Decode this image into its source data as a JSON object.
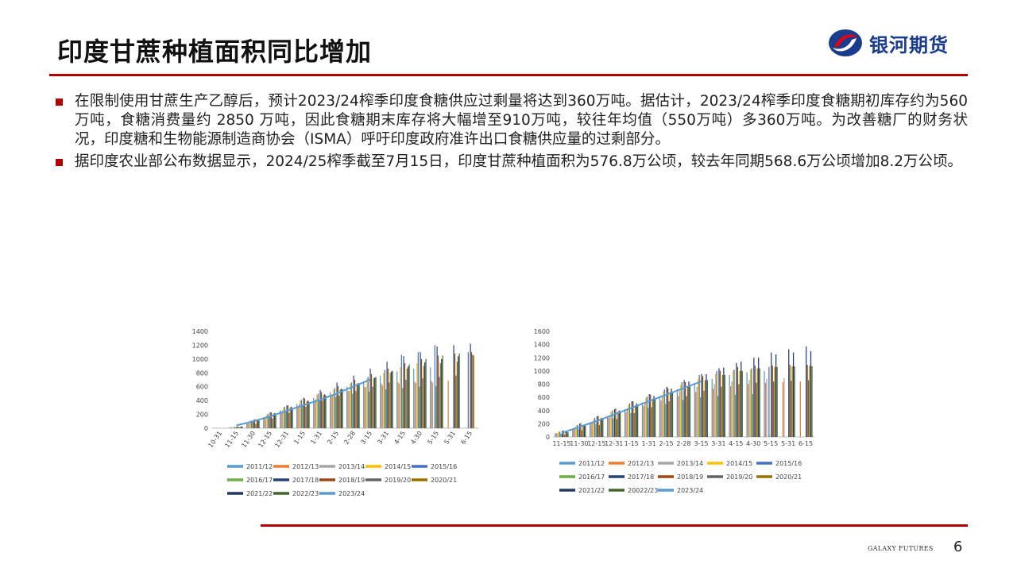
{
  "header": {
    "title": "印度甘蔗种植面积同比增加",
    "logo_text": "银河期货"
  },
  "bullets": [
    "在限制使用甘蔗生产乙醇后，预计2023/24榨季印度食糖供应过剩量将达到360万吨。据估计，2023/24榨季印度食糖期初库存约为560万吨，食糖消费量约 2850 万吨，因此食糖期末库存将大幅增至910万吨，较往年均值（550万吨）多360万吨。为改善糖厂的财务状况，印度糖和生物能源制造商协会（ISMA）呼吁印度政府准许出口食糖供应量的过剩部分。",
    "据印度农业部公布数据显示，2024/25榨季截至7月15日，印度甘蔗种植面积为576.8万公顷，较去年同期568.6万公顷增加8.2万公顷。"
  ],
  "footer": {
    "brand": "GALAXY FUTURES",
    "page": "6"
  },
  "chart_data": [
    {
      "type": "bar",
      "title": "",
      "xlabel": "",
      "ylabel": "",
      "ylim": [
        0,
        1400
      ],
      "yticks": [
        0,
        200,
        400,
        600,
        800,
        1000,
        1200,
        1400
      ],
      "categories": [
        "10-31",
        "11-15",
        "11-30",
        "12-15",
        "12-31",
        "1-15",
        "1-31",
        "2-15",
        "2-28",
        "3-15",
        "3-31",
        "4-15",
        "4-30",
        "5-15",
        "5-31",
        "6-15"
      ],
      "grid": false,
      "legend": "bottom",
      "line_series": "2023/24",
      "series": [
        {
          "name": "2011/12",
          "color": "#5b9bd5",
          "values": [
            0,
            15,
            80,
            160,
            260,
            350,
            440,
            520,
            600,
            680,
            760,
            820,
            860,
            880,
            0,
            0
          ]
        },
        {
          "name": "2012/13",
          "color": "#ed7d31",
          "values": [
            0,
            10,
            70,
            150,
            240,
            320,
            400,
            470,
            540,
            600,
            640,
            660,
            670,
            680,
            690,
            0
          ]
        },
        {
          "name": "2013/14",
          "color": "#a5a5a5",
          "values": [
            0,
            10,
            80,
            170,
            260,
            350,
            420,
            480,
            540,
            590,
            620,
            640,
            650,
            660,
            0,
            0
          ]
        },
        {
          "name": "2014/15",
          "color": "#ffc000",
          "values": [
            0,
            15,
            100,
            200,
            300,
            400,
            480,
            560,
            640,
            720,
            800,
            880,
            940,
            0,
            0,
            0
          ]
        },
        {
          "name": "2015/16",
          "color": "#4472c4",
          "values": [
            0,
            20,
            110,
            210,
            310,
            410,
            500,
            580,
            660,
            740,
            840,
            1060,
            1100,
            1200,
            0,
            1100
          ]
        },
        {
          "name": "2016/17",
          "color": "#70ad47",
          "values": [
            0,
            15,
            90,
            180,
            260,
            340,
            400,
            450,
            500,
            530,
            560,
            580,
            600,
            610,
            0,
            0
          ]
        },
        {
          "name": "2017/18",
          "color": "#264478",
          "values": [
            0,
            20,
            120,
            230,
            330,
            440,
            550,
            660,
            760,
            860,
            960,
            1040,
            1100,
            1180,
            1200,
            1220
          ]
        },
        {
          "name": "2018/19",
          "color": "#9e480e",
          "values": [
            0,
            25,
            130,
            230,
            330,
            430,
            520,
            610,
            700,
            780,
            860,
            940,
            1000,
            1050,
            1080,
            1100
          ]
        },
        {
          "name": "2019/20",
          "color": "#636363",
          "values": [
            0,
            10,
            60,
            140,
            220,
            310,
            400,
            470,
            540,
            600,
            660,
            700,
            720,
            740,
            760,
            1060
          ]
        },
        {
          "name": "2020/21",
          "color": "#997300",
          "values": [
            0,
            20,
            120,
            210,
            300,
            390,
            480,
            560,
            640,
            720,
            800,
            860,
            900,
            940,
            960,
            1050
          ]
        },
        {
          "name": "2021/22",
          "color": "#1f3864",
          "values": [
            0,
            25,
            130,
            220,
            310,
            400,
            490,
            570,
            650,
            730,
            820,
            890,
            950,
            1000,
            1040,
            0
          ]
        },
        {
          "name": "2022/23",
          "color": "#43682b",
          "values": [
            0,
            20,
            110,
            200,
            290,
            380,
            470,
            560,
            650,
            740,
            830,
            920,
            1000,
            1050,
            1080,
            0
          ]
        },
        {
          "name": "2023/24",
          "color": "#5b9bd5",
          "values": [
            null,
            40,
            100,
            170,
            250,
            330,
            410,
            500,
            600,
            700,
            null,
            null,
            null,
            null,
            null,
            null
          ]
        }
      ]
    },
    {
      "type": "bar",
      "title": "",
      "xlabel": "",
      "ylabel": "",
      "ylim": [
        0,
        1600
      ],
      "yticks": [
        0,
        200,
        400,
        600,
        800,
        1000,
        1200,
        1400,
        1600
      ],
      "categories": [
        "11-15",
        "11-30",
        "12-15",
        "12-31",
        "1-15",
        "1-31",
        "2-15",
        "2-28",
        "3-15",
        "3-31",
        "4-15",
        "4-30",
        "5-15",
        "5-31",
        "6-15"
      ],
      "grid": false,
      "legend": "bottom",
      "line_series": "2023/24",
      "series": [
        {
          "name": "2011/12",
          "color": "#5b9bd5",
          "values": [
            60,
            130,
            210,
            310,
            420,
            520,
            620,
            720,
            800,
            880,
            940,
            980,
            1000,
            0,
            0
          ]
        },
        {
          "name": "2012/13",
          "color": "#ed7d31",
          "values": [
            50,
            120,
            200,
            290,
            380,
            470,
            550,
            620,
            680,
            730,
            770,
            800,
            820,
            830,
            840
          ]
        },
        {
          "name": "2013/14",
          "color": "#a5a5a5",
          "values": [
            60,
            140,
            230,
            330,
            420,
            520,
            610,
            700,
            760,
            800,
            840,
            860,
            880,
            890,
            0
          ]
        },
        {
          "name": "2014/15",
          "color": "#ffc000",
          "values": [
            80,
            170,
            270,
            380,
            490,
            590,
            690,
            790,
            880,
            960,
            1000,
            1020,
            0,
            0,
            0
          ]
        },
        {
          "name": "2015/16",
          "color": "#4472c4",
          "values": [
            80,
            180,
            290,
            400,
            510,
            610,
            720,
            830,
            940,
            1000,
            1020,
            1040,
            1060,
            0,
            0
          ]
        },
        {
          "name": "2016/17",
          "color": "#70ad47",
          "values": [
            50,
            120,
            200,
            280,
            360,
            440,
            500,
            560,
            600,
            620,
            640,
            650,
            0,
            0,
            0
          ]
        },
        {
          "name": "2017/18",
          "color": "#264478",
          "values": [
            90,
            200,
            310,
            420,
            540,
            650,
            760,
            860,
            950,
            1040,
            1120,
            1200,
            1280,
            1330,
            1370
          ]
        },
        {
          "name": "2018/19",
          "color": "#9e480e",
          "values": [
            100,
            210,
            320,
            430,
            540,
            640,
            740,
            830,
            920,
            1000,
            1060,
            1080,
            1080,
            1090,
            1090
          ]
        },
        {
          "name": "2019/20",
          "color": "#636363",
          "values": [
            40,
            100,
            180,
            270,
            360,
            450,
            540,
            620,
            700,
            760,
            800,
            820,
            840,
            850,
            860
          ]
        },
        {
          "name": "2020/21",
          "color": "#997300",
          "values": [
            80,
            180,
            280,
            380,
            480,
            580,
            680,
            770,
            860,
            940,
            1000,
            1040,
            1060,
            1070,
            1080
          ]
        },
        {
          "name": "2021/22",
          "color": "#1f3864",
          "values": [
            80,
            180,
            290,
            400,
            510,
            620,
            730,
            840,
            950,
            1050,
            1140,
            1200,
            1250,
            1280,
            1300
          ]
        },
        {
          "name": "20022/23",
          "color": "#43682b",
          "values": [
            70,
            170,
            270,
            370,
            470,
            570,
            670,
            770,
            860,
            940,
            1000,
            1040,
            1060,
            1070,
            1070
          ]
        },
        {
          "name": "2023/24",
          "color": "#5b9bd5",
          "values": [
            60,
            150,
            240,
            340,
            440,
            540,
            640,
            740,
            840,
            null,
            null,
            null,
            null,
            null,
            null
          ]
        }
      ]
    }
  ]
}
